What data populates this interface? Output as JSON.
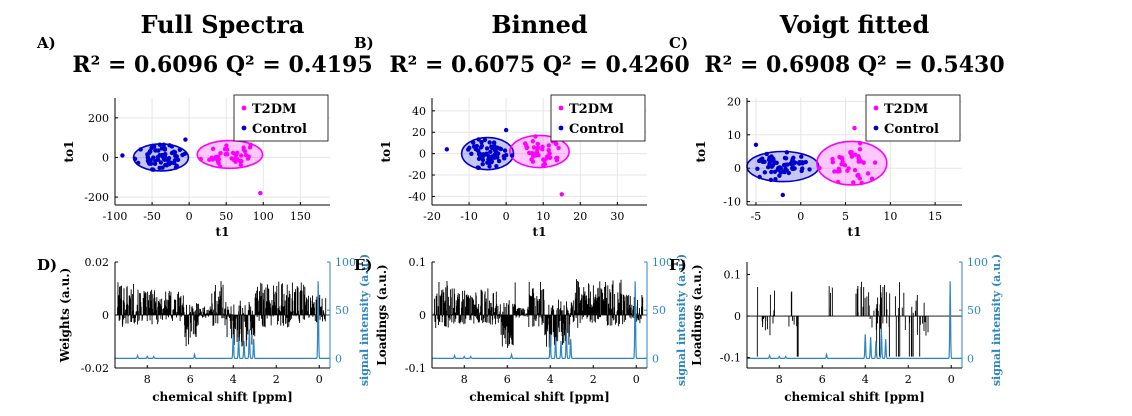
{
  "chart_data": [
    {
      "panel": "A)",
      "type": "scatter",
      "title": "Full Spectra",
      "subtitle": "R² = 0.6096  Q² = 0.4195",
      "xlabel": "t1",
      "ylabel": "to1",
      "xlim": [
        -100,
        190
      ],
      "ylim": [
        -240,
        300
      ],
      "xticks": [
        "-100",
        "-50",
        "0",
        "50",
        "100",
        "150"
      ],
      "yticks": [
        "-200",
        "0",
        "200"
      ],
      "xtick_values": [
        -100,
        -50,
        0,
        50,
        100,
        150
      ],
      "ytick_values": [
        -200,
        0,
        200
      ],
      "grid": true,
      "legend": "top-right",
      "series": [
        {
          "name": "T2DM",
          "color": "#ff00ff",
          "center": [
            55,
            15
          ],
          "radius": [
            44,
            70
          ],
          "spread": [
            17,
            35
          ],
          "count": 40,
          "seed": 11,
          "outliers": [
            [
              96,
              -180
            ],
            [
              87,
              105
            ]
          ]
        },
        {
          "name": "Control",
          "color": "#0000cc",
          "center": [
            -38,
            0
          ],
          "radius": [
            37,
            68
          ],
          "spread": [
            14,
            30
          ],
          "count": 70,
          "seed": 23,
          "outliers": [
            [
              -90,
              10
            ],
            [
              -5,
              90
            ]
          ]
        }
      ]
    },
    {
      "panel": "B)",
      "type": "scatter",
      "title": "Binned",
      "subtitle": "R² = 0.6075  Q² = 0.4260",
      "xlabel": "t1",
      "ylabel": "to1",
      "xlim": [
        -20,
        38
      ],
      "ylim": [
        -48,
        52
      ],
      "xticks": [
        "-20",
        "-10",
        "0",
        "10",
        "20",
        "30"
      ],
      "yticks": [
        "-40",
        "-20",
        "0",
        "20",
        "40"
      ],
      "xtick_values": [
        -20,
        -10,
        0,
        10,
        20,
        30
      ],
      "ytick_values": [
        -40,
        -20,
        0,
        20,
        40
      ],
      "grid": true,
      "legend": "top-right",
      "series": [
        {
          "name": "T2DM",
          "color": "#ff00ff",
          "center": [
            9,
            2
          ],
          "radius": [
            8,
            15
          ],
          "spread": [
            3.2,
            7
          ],
          "count": 40,
          "seed": 31,
          "outliers": [
            [
              15,
              -38
            ],
            [
              18,
              25
            ]
          ]
        },
        {
          "name": "Control",
          "color": "#0000cc",
          "center": [
            -5,
            0
          ],
          "radius": [
            7,
            15
          ],
          "spread": [
            2.8,
            7
          ],
          "count": 70,
          "seed": 47,
          "outliers": [
            [
              -16,
              4
            ],
            [
              0,
              22
            ]
          ]
        }
      ]
    },
    {
      "panel": "C)",
      "type": "scatter",
      "title": "Voigt fitted",
      "subtitle": "R² = 0.6908  Q² = 0.5430",
      "xlabel": "t1",
      "ylabel": "to1",
      "xlim": [
        -6,
        18
      ],
      "ylim": [
        -11,
        21
      ],
      "xticks": [
        "-5",
        "0",
        "5",
        "10",
        "15"
      ],
      "yticks": [
        "-10",
        "0",
        "10",
        "20"
      ],
      "xtick_values": [
        -5,
        0,
        5,
        10,
        15
      ],
      "ytick_values": [
        -10,
        0,
        10,
        20
      ],
      "grid": true,
      "legend": "top-right",
      "series": [
        {
          "name": "T2DM",
          "color": "#ff00ff",
          "center": [
            5.7,
            1.5
          ],
          "radius": [
            3.9,
            6.5
          ],
          "spread": [
            1.6,
            3.2
          ],
          "count": 40,
          "seed": 53,
          "outliers": [
            [
              6,
              12
            ],
            [
              9,
              9
            ]
          ]
        },
        {
          "name": "Control",
          "color": "#0000cc",
          "center": [
            -2,
            0.5
          ],
          "radius": [
            4,
            4.5
          ],
          "spread": [
            1.6,
            2.0
          ],
          "count": 70,
          "seed": 71,
          "outliers": [
            [
              -5,
              7
            ],
            [
              -2,
              -8
            ]
          ]
        }
      ]
    },
    {
      "panel": "D)",
      "type": "line",
      "xlabel": "chemical shift [ppm]",
      "ylabel": "Weights (a.u.)",
      "ylabel_right": "signal intensity (a.u.)",
      "xlim": [
        9.5,
        -0.5
      ],
      "ylim": [
        -0.02,
        0.02
      ],
      "ylim_right": [
        -10,
        100
      ],
      "xticks": [
        "8",
        "6",
        "4",
        "2",
        "0"
      ],
      "xtick_values": [
        8,
        6,
        4,
        2,
        0
      ],
      "yticks": [
        "-0.02",
        "0",
        "0.02"
      ],
      "ytick_values": [
        -0.02,
        0,
        0.02
      ],
      "yticks_right": [
        "0",
        "50",
        "100"
      ],
      "ytick_values_right": [
        0,
        50,
        100
      ],
      "loading_style": "dense",
      "loading_max": 0.016,
      "seed": 101,
      "series": [
        {
          "name": "",
          "role": "loadings",
          "color": "#000000"
        },
        {
          "name": "",
          "role": "mean spectrum",
          "color": "#2e86c1",
          "peaks": [
            [
              8.45,
              3
            ],
            [
              8.0,
              2
            ],
            [
              7.7,
              2
            ],
            [
              5.8,
              4
            ],
            [
              4.0,
              25
            ],
            [
              3.75,
              22
            ],
            [
              3.5,
              18
            ],
            [
              3.25,
              30
            ],
            [
              3.05,
              20
            ],
            [
              0.05,
              80
            ]
          ]
        }
      ]
    },
    {
      "panel": "E)",
      "type": "line",
      "xlabel": "chemical shift [ppm]",
      "ylabel": "Loadings (a.u.)",
      "ylabel_right": "signal intensity (a.u.)",
      "xlim": [
        9.5,
        -0.5
      ],
      "ylim": [
        -0.1,
        0.1
      ],
      "ylim_right": [
        -10,
        100
      ],
      "xticks": [
        "8",
        "6",
        "4",
        "2",
        "0"
      ],
      "xtick_values": [
        8,
        6,
        4,
        2,
        0
      ],
      "yticks": [
        "-0.1",
        "0",
        "0.1"
      ],
      "ytick_values": [
        -0.1,
        0,
        0.1
      ],
      "yticks_right": [
        "0",
        "50",
        "100"
      ],
      "ytick_values_right": [
        0,
        50,
        100
      ],
      "loading_style": "dense",
      "loading_max": 0.085,
      "seed": 202,
      "series": [
        {
          "name": "",
          "role": "loadings",
          "color": "#000000"
        },
        {
          "name": "",
          "role": "mean spectrum",
          "color": "#2e86c1",
          "peaks": [
            [
              8.45,
              3
            ],
            [
              8.0,
              2
            ],
            [
              7.7,
              2
            ],
            [
              5.8,
              4
            ],
            [
              4.0,
              25
            ],
            [
              3.75,
              22
            ],
            [
              3.5,
              18
            ],
            [
              3.25,
              30
            ],
            [
              3.05,
              20
            ],
            [
              0.05,
              80
            ]
          ]
        }
      ]
    },
    {
      "panel": "F)",
      "type": "line",
      "xlabel": "chemical shift [ppm]",
      "ylabel": "Loadings (a.u.)",
      "ylabel_right": "signal intensity (a.u.)",
      "xlim": [
        9.5,
        -0.5
      ],
      "ylim": [
        -0.125,
        0.13
      ],
      "ylim_right": [
        -10,
        100
      ],
      "xticks": [
        "8",
        "6",
        "4",
        "2",
        "0"
      ],
      "xtick_values": [
        8,
        6,
        4,
        2,
        0
      ],
      "yticks": [
        "-0.1",
        "0",
        "0.1"
      ],
      "ytick_values": [
        -0.1,
        0,
        0.1
      ],
      "yticks_right": [
        "0",
        "50",
        "100"
      ],
      "ytick_values_right": [
        0,
        50,
        100
      ],
      "loading_style": "sparse",
      "loading_max": 0.11,
      "seed": 303,
      "series": [
        {
          "name": "",
          "role": "loadings",
          "color": "#000000"
        },
        {
          "name": "",
          "role": "mean spectrum",
          "color": "#2e86c1",
          "peaks": [
            [
              8.45,
              3
            ],
            [
              8.0,
              2
            ],
            [
              7.7,
              2
            ],
            [
              5.8,
              4
            ],
            [
              4.0,
              25
            ],
            [
              3.75,
              22
            ],
            [
              3.5,
              18
            ],
            [
              3.25,
              30
            ],
            [
              3.05,
              20
            ],
            [
              0.05,
              80
            ]
          ]
        }
      ]
    }
  ]
}
